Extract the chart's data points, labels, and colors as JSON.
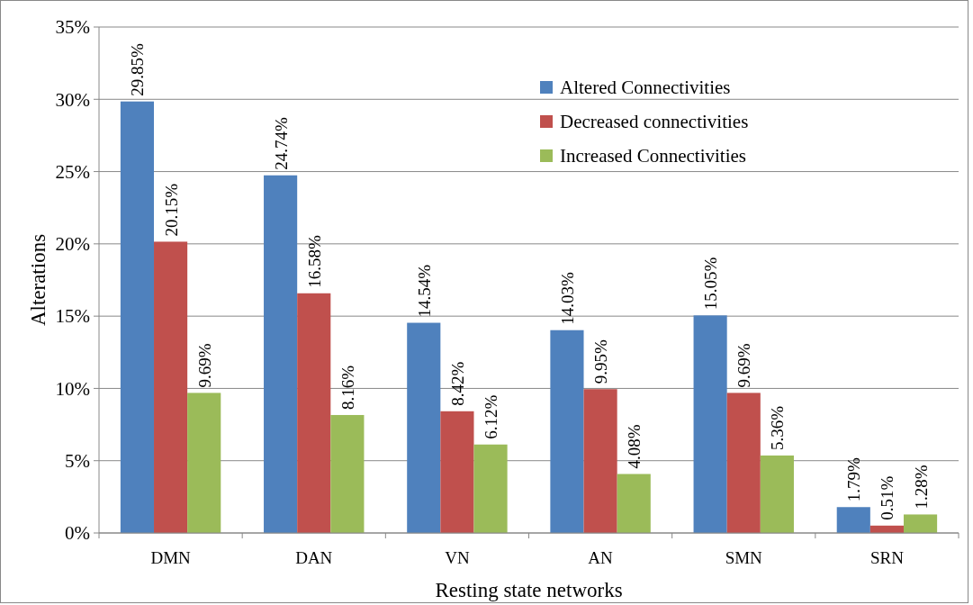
{
  "chart_data": {
    "type": "bar",
    "xlabel": "Resting state networks",
    "ylabel": "Alterations",
    "categories": [
      "DMN",
      "DAN",
      "VN",
      "AN",
      "SMN",
      "SRN"
    ],
    "series": [
      {
        "name": "Altered Connectivities",
        "color": "#4f81bd",
        "values": [
          29.85,
          24.74,
          14.54,
          14.03,
          15.05,
          1.79
        ],
        "value_labels": [
          "29.85%",
          "24.74%",
          "14.54%",
          "14.03%",
          "15.05%",
          "1.79%"
        ]
      },
      {
        "name": "Decreased connectivities",
        "color": "#c0504d",
        "values": [
          20.15,
          16.58,
          8.42,
          9.95,
          9.69,
          0.51
        ],
        "value_labels": [
          "20.15%",
          "16.58%",
          "8.42%",
          "9.95%",
          "9.69%",
          "0.51%"
        ]
      },
      {
        "name": "Increased Connectivities",
        "color": "#9bbb59",
        "values": [
          9.69,
          8.16,
          6.12,
          4.08,
          5.36,
          1.28
        ],
        "value_labels": [
          "9.69%",
          "8.16%",
          "6.12%",
          "4.08%",
          "5.36%",
          "1.28%"
        ]
      }
    ],
    "ylim": [
      0,
      35
    ],
    "yticks": [
      {
        "value": 0,
        "label": "0%"
      },
      {
        "value": 5,
        "label": "5%"
      },
      {
        "value": 10,
        "label": "10%"
      },
      {
        "value": 15,
        "label": "15%"
      },
      {
        "value": 20,
        "label": "20%"
      },
      {
        "value": 25,
        "label": "25%"
      },
      {
        "value": 30,
        "label": "30%"
      },
      {
        "value": 35,
        "label": "35%"
      }
    ],
    "grid": "y",
    "legend": "top right"
  }
}
